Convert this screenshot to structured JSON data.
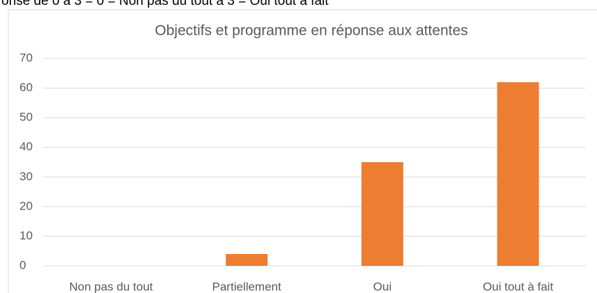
{
  "header_text": "onse de 0 à 3 = 0 = Non pas du tout à 3 = Oui tout à fait",
  "chart_data": {
    "type": "bar",
    "title": "Objectifs et programme en réponse aux attentes",
    "categories": [
      "Non pas du tout",
      "Partiellement",
      "Oui",
      "Oui tout à fait"
    ],
    "values": [
      0,
      4,
      35,
      62
    ],
    "color": "#ed7d31",
    "ylim": [
      0,
      70
    ],
    "yticks": [
      0,
      10,
      20,
      30,
      40,
      50,
      60,
      70
    ],
    "grid": true
  }
}
